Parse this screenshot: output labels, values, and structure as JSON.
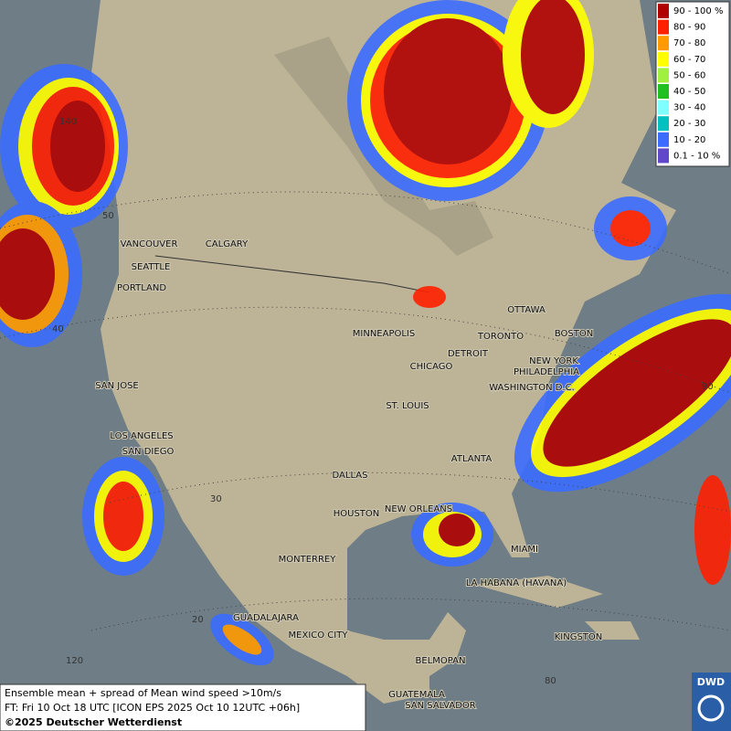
{
  "legend": {
    "items": [
      {
        "label": "90 - 100 %",
        "color": "#b00000"
      },
      {
        "label": "80 - 90",
        "color": "#ff2000"
      },
      {
        "label": "70 - 80",
        "color": "#ff9a00"
      },
      {
        "label": "60 - 70",
        "color": "#ffff00"
      },
      {
        "label": "50 - 60",
        "color": "#a0f040"
      },
      {
        "label": "40 - 50",
        "color": "#20c020"
      },
      {
        "label": "30 - 40",
        "color": "#80ffff"
      },
      {
        "label": "20 - 30",
        "color": "#00c0c0"
      },
      {
        "label": "10 - 20",
        "color": "#3c6cff"
      },
      {
        "label": "0.1 - 10 %",
        "color": "#6048c8"
      }
    ]
  },
  "cities": [
    "VANCOUVER",
    "CALGARY",
    "SEATTLE",
    "PORTLAND",
    "SAN JOSE",
    "LOS ANGELES",
    "SAN DIEGO",
    "MINNEAPOLIS",
    "CHICAGO",
    "DETROIT",
    "TORONTO",
    "OTTAWA",
    "BOSTON",
    "NEW YORK",
    "PHILADELPHIA",
    "WASHINGTON D.C.",
    "ST. LOUIS",
    "ATLANTA",
    "DALLAS",
    "HOUSTON",
    "NEW ORLEANS",
    "MIAMI",
    "MONTERREY",
    "LA HABANA (HAVANA)",
    "GUADALAJARA",
    "MEXICO CITY",
    "KINGSTON",
    "BELMOPAN",
    "GUATEMALA",
    "SAN SALVADOR"
  ],
  "graticule_labels": [
    "140",
    "50",
    "40",
    "30",
    "20",
    "120",
    "90",
    "80"
  ],
  "footer": {
    "line1": "Ensemble mean + spread of Mean wind speed >10m/s",
    "line2": "FT: Fri 10 Oct 18 UTC [ICON EPS 2025 Oct 10 12UTC +06h]",
    "line3": "©2025 Deutscher Wetterdienst"
  },
  "logo": "DWD"
}
